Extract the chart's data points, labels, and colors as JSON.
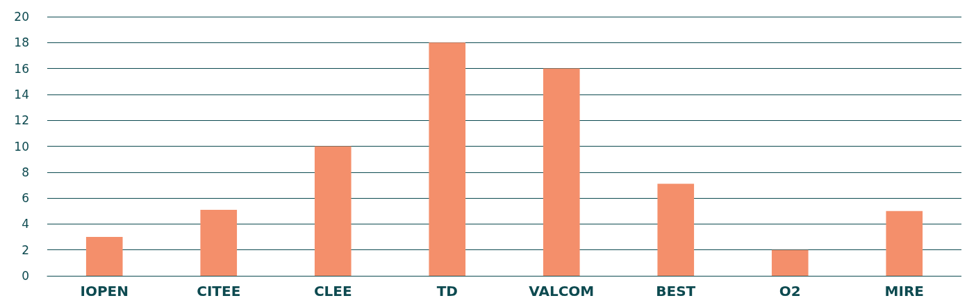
{
  "chart_data": {
    "type": "bar",
    "categories": [
      "IOPEN",
      "CITEE",
      "CLEE",
      "TD",
      "VALCOM",
      "BEST",
      "O2",
      "MIRE"
    ],
    "values": [
      3,
      5.1,
      10,
      18,
      16,
      7.1,
      2,
      5
    ],
    "color": "#f48f6b",
    "ylim": [
      0,
      20
    ],
    "yticks": [
      0,
      2,
      4,
      6,
      8,
      10,
      12,
      14,
      16,
      18,
      20
    ],
    "grid": "y"
  }
}
